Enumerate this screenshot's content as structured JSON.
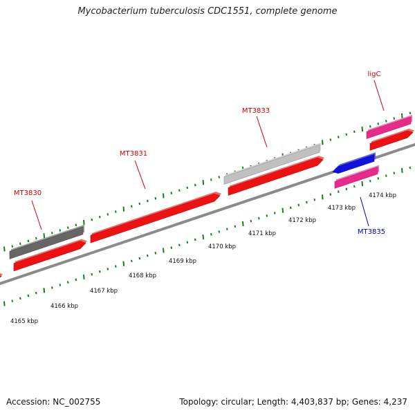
{
  "title": "Mycobacterium tuberculosis CDC1551, complete genome",
  "footer": {
    "accession": "Accession: NC_002755",
    "summary": "Topology: circular; Length: 4,403,837 bp; Genes: 4,237"
  },
  "colors": {
    "forward_cds": "#ee1111",
    "reverse_cds": "#1111dd",
    "rna_pink": "#e82a8c",
    "gray_dark": "#666666",
    "gray_light": "#c0c0c0",
    "tick_green": "#1b7a1b",
    "backbone": "#8a8a8a",
    "label_red": "#cc0000",
    "label_blue": "#0000bb"
  },
  "scale": {
    "unit": "kbp",
    "ticks": [
      {
        "label": "4165 kbp"
      },
      {
        "label": "4166 kbp"
      },
      {
        "label": "4167 kbp"
      },
      {
        "label": "4168 kbp"
      },
      {
        "label": "4169 kbp"
      },
      {
        "label": "4170 kbp"
      },
      {
        "label": "4171 kbp"
      },
      {
        "label": "4172 kbp"
      },
      {
        "label": "4173 kbp"
      },
      {
        "label": "4174 kbp"
      }
    ]
  },
  "features": {
    "labels": [
      {
        "name": "MT3830",
        "color_key": "label_red"
      },
      {
        "name": "MT3831",
        "color_key": "label_red"
      },
      {
        "name": "MT3833",
        "color_key": "label_red"
      },
      {
        "name": "ligC",
        "color_key": "label_red"
      },
      {
        "name": "MT3835",
        "color_key": "label_blue"
      }
    ]
  }
}
